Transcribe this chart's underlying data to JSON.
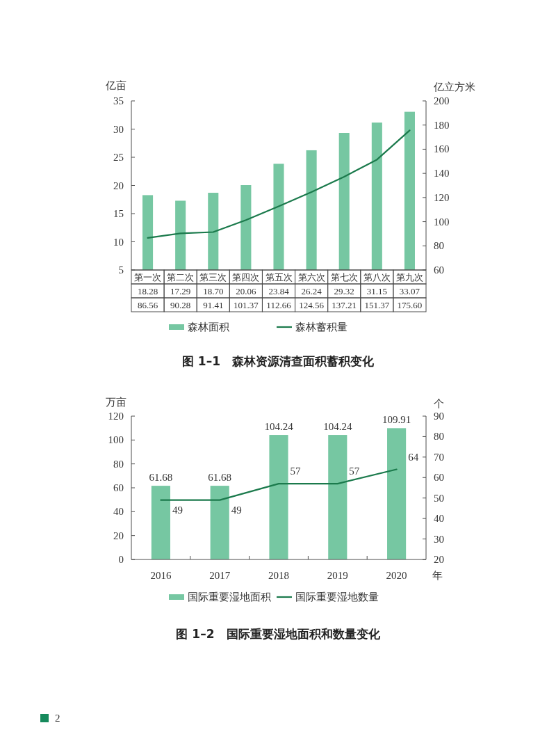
{
  "chart_data": [
    {
      "type": "bar",
      "title": "图 1–1　森林资源清查面积蓄积变化",
      "ylabel": "亿亩",
      "y2label": "亿立方米",
      "categories": [
        "第一次",
        "第二次",
        "第三次",
        "第四次",
        "第五次",
        "第六次",
        "第七次",
        "第八次",
        "第九次"
      ],
      "series": [
        {
          "name": "森林面积",
          "color": "#76c7a2",
          "values": [
            18.28,
            17.29,
            18.7,
            20.06,
            23.84,
            26.24,
            29.32,
            31.15,
            33.07
          ],
          "value_labels": [
            "18.28",
            "17.29",
            "18.70",
            "20.06",
            "23.84",
            "26.24",
            "29.32",
            "31.15",
            "33.07"
          ]
        },
        {
          "name": "森林蓄积量",
          "type": "line",
          "axis": "y2",
          "color": "#1b7a4c",
          "values": [
            86.56,
            90.28,
            91.41,
            101.37,
            112.66,
            124.56,
            137.21,
            151.37,
            175.6
          ],
          "value_labels": [
            "86.56",
            "90.28",
            "91.41",
            "101.37",
            "112.66",
            "124.56",
            "137.21",
            "151.37",
            "175.60"
          ]
        }
      ],
      "ylim": [
        5,
        35
      ],
      "yticks": [
        5,
        10,
        15,
        20,
        25,
        30,
        35
      ],
      "y2lim": [
        60,
        200
      ],
      "y2ticks": [
        60,
        80,
        100,
        120,
        140,
        160,
        180,
        200
      ],
      "legend": "bottom"
    },
    {
      "type": "bar",
      "title": "图 1–2　国际重要湿地面积和数量变化",
      "ylabel": "万亩",
      "y2label": "个",
      "xlabel": "年",
      "categories": [
        "2016",
        "2017",
        "2018",
        "2019",
        "2020"
      ],
      "series": [
        {
          "name": "国际重要湿地面积",
          "color": "#76c7a2",
          "values": [
            61.68,
            61.68,
            104.24,
            104.24,
            109.91
          ]
        },
        {
          "name": "国际重要湿地数量",
          "type": "line",
          "axis": "y2",
          "color": "#1b7a4c",
          "values": [
            49,
            49,
            57,
            57,
            64
          ]
        }
      ],
      "ylim": [
        0,
        120
      ],
      "yticks": [
        0,
        20,
        40,
        60,
        80,
        100,
        120
      ],
      "y2lim": [
        20,
        90
      ],
      "y2ticks": [
        20,
        30,
        40,
        50,
        60,
        70,
        80,
        90
      ],
      "data_labels": true,
      "legend": "bottom",
      "annotations": [
        "2"
      ]
    }
  ]
}
